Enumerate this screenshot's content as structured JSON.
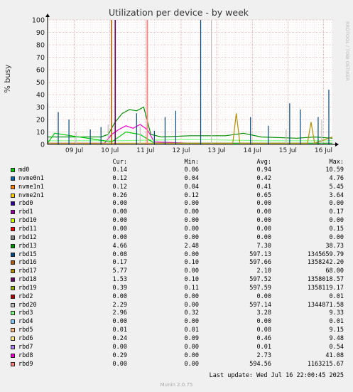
{
  "chart_data": {
    "type": "line",
    "title": "Utilization per device - by week",
    "ylabel": "% busy",
    "side_label": "RRDTOOL / TOBI OETIKER",
    "ylim": [
      0,
      100
    ],
    "y_ticks": [
      0,
      10,
      20,
      30,
      40,
      50,
      60,
      70,
      80,
      90,
      100
    ],
    "x_ticks": [
      "09 Jul",
      "10 Jul",
      "11 Jul",
      "12 Jul",
      "13 Jul",
      "14 Jul",
      "15 Jul",
      "16 Jul"
    ],
    "x_range_days": [
      0,
      8
    ],
    "x_tick_positions_days": [
      0.75,
      1.75,
      2.75,
      3.75,
      4.75,
      5.75,
      6.75,
      7.75
    ],
    "grid": true,
    "columns": {
      "cur": "Cur:",
      "min": "Min:",
      "avg": "Avg:",
      "max": "Max:"
    },
    "series": [
      {
        "name": "md0",
        "color": "#00cc00",
        "cur": "0.14",
        "min": "0.06",
        "avg": "0.94",
        "max": "10.59"
      },
      {
        "name": "nvme0n1",
        "color": "#0066b3",
        "cur": "0.12",
        "min": "0.04",
        "avg": "0.42",
        "max": "4.76"
      },
      {
        "name": "nvme1n1",
        "color": "#ff8000",
        "cur": "0.12",
        "min": "0.04",
        "avg": "0.41",
        "max": "5.45"
      },
      {
        "name": "nvme2n1",
        "color": "#ffcc00",
        "cur": "0.26",
        "min": "0.12",
        "avg": "0.65",
        "max": "3.64"
      },
      {
        "name": "rbd0",
        "color": "#330099",
        "cur": "0.00",
        "min": "0.00",
        "avg": "0.00",
        "max": "0.00"
      },
      {
        "name": "rbd1",
        "color": "#990099",
        "cur": "0.00",
        "min": "0.00",
        "avg": "0.00",
        "max": "0.17"
      },
      {
        "name": "rbd10",
        "color": "#ccff00",
        "cur": "0.00",
        "min": "0.00",
        "avg": "0.00",
        "max": "0.00"
      },
      {
        "name": "rbd11",
        "color": "#ff0000",
        "cur": "0.00",
        "min": "0.00",
        "avg": "0.00",
        "max": "0.15"
      },
      {
        "name": "rbd12",
        "color": "#808080",
        "cur": "0.00",
        "min": "0.00",
        "avg": "0.00",
        "max": "0.00"
      },
      {
        "name": "rbd13",
        "color": "#008f00",
        "cur": "4.66",
        "min": "2.48",
        "avg": "7.30",
        "max": "38.73"
      },
      {
        "name": "rbd15",
        "color": "#00487d",
        "cur": "0.08",
        "min": "0.00",
        "avg": "597.13",
        "max": "1345659.79"
      },
      {
        "name": "rbd16",
        "color": "#b35a00",
        "cur": "0.17",
        "min": "0.10",
        "avg": "597.66",
        "max": "1358242.20"
      },
      {
        "name": "rbd17",
        "color": "#b38f00",
        "cur": "5.77",
        "min": "0.00",
        "avg": "2.10",
        "max": "68.00"
      },
      {
        "name": "rbd18",
        "color": "#6b006b",
        "cur": "1.53",
        "min": "0.10",
        "avg": "597.52",
        "max": "1358018.57"
      },
      {
        "name": "rbd19",
        "color": "#8fb300",
        "cur": "0.39",
        "min": "0.11",
        "avg": "597.59",
        "max": "1358119.17"
      },
      {
        "name": "rbd2",
        "color": "#b30000",
        "cur": "0.00",
        "min": "0.00",
        "avg": "0.00",
        "max": "0.01"
      },
      {
        "name": "rbd20",
        "color": "#bebebe",
        "cur": "2.29",
        "min": "0.00",
        "avg": "597.14",
        "max": "1344871.58"
      },
      {
        "name": "rbd3",
        "color": "#80ff80",
        "cur": "2.96",
        "min": "0.32",
        "avg": "3.28",
        "max": "9.33"
      },
      {
        "name": "rbd4",
        "color": "#80c9ff",
        "cur": "0.00",
        "min": "0.00",
        "avg": "0.00",
        "max": "0.01"
      },
      {
        "name": "rbd5",
        "color": "#ffc080",
        "cur": "0.01",
        "min": "0.01",
        "avg": "0.08",
        "max": "9.15"
      },
      {
        "name": "rbd6",
        "color": "#ffe680",
        "cur": "0.24",
        "min": "0.09",
        "avg": "0.46",
        "max": "9.48"
      },
      {
        "name": "rbd7",
        "color": "#aa80ff",
        "cur": "0.00",
        "min": "0.00",
        "avg": "0.01",
        "max": "0.54"
      },
      {
        "name": "rbd8",
        "color": "#ee00cc",
        "cur": "0.29",
        "min": "0.00",
        "avg": "2.73",
        "max": "41.08"
      },
      {
        "name": "rbd9",
        "color": "#ff8080",
        "cur": "0.00",
        "min": "0.00",
        "avg": "594.56",
        "max": "1163215.67"
      }
    ],
    "trace_samples": [
      {
        "series": "rbd13",
        "x": [
          0,
          1.5,
          1.7,
          1.9,
          2.1,
          2.3,
          2.5,
          2.7,
          2.9,
          3.2,
          4.0,
          5.0,
          5.5,
          6.0,
          7.0,
          7.5,
          8.0
        ],
        "y": [
          6,
          6,
          8,
          18,
          25,
          28,
          27,
          30,
          8,
          6,
          7,
          7,
          9,
          6,
          5,
          6,
          5
        ]
      },
      {
        "series": "rbd8",
        "x": [
          0,
          1.6,
          1.8,
          2.0,
          2.2,
          2.4,
          2.6,
          2.8,
          3.0,
          4.0,
          8.0
        ],
        "y": [
          1,
          1,
          8,
          12,
          15,
          13,
          16,
          12,
          2,
          1,
          1
        ]
      },
      {
        "series": "rbd3",
        "x": [
          0,
          2.0,
          4.0,
          6.0,
          8.0
        ],
        "y": [
          3,
          3,
          4,
          3,
          3
        ]
      },
      {
        "series": "md0",
        "x": [
          0,
          0.2,
          1.8,
          2.2,
          2.6,
          3.0,
          5.0,
          8.0
        ],
        "y": [
          1,
          9,
          2,
          10,
          8,
          1,
          1,
          1
        ]
      },
      {
        "series": "rbd17",
        "x": [
          0,
          5.2,
          5.3,
          5.4,
          7.3,
          7.4,
          7.5,
          8.0
        ],
        "y": [
          1,
          1,
          25,
          1,
          1,
          18,
          1,
          6
        ]
      },
      {
        "series": "rbd15",
        "x": [
          0.0,
          0.3,
          0.6,
          1.2,
          1.5,
          2.5,
          3.0,
          3.3,
          3.6,
          4.3,
          5.7,
          6.2,
          6.8,
          7.1,
          7.6,
          7.9
        ],
        "y": [
          33,
          26,
          20,
          12,
          14,
          25,
          11,
          22,
          27,
          100,
          22,
          15,
          33,
          28,
          22,
          44
        ]
      },
      {
        "series": "rbd16",
        "x": [
          1.8,
          2.8
        ],
        "y": [
          100,
          100
        ]
      },
      {
        "series": "rbd20",
        "x": [
          0.8,
          1.7,
          2.6,
          4.6,
          6.7,
          7.7
        ],
        "y": [
          10,
          16,
          14,
          100,
          12,
          20
        ]
      },
      {
        "series": "rbd9",
        "x": [
          2.8
        ],
        "y": [
          100
        ]
      },
      {
        "series": "rbd18",
        "x": [
          1.9
        ],
        "y": [
          100
        ]
      }
    ]
  },
  "footer": {
    "last_update": "Last update: Wed Jul 16 22:00:45 2025",
    "munin_version": "Munin 2.0.75"
  }
}
